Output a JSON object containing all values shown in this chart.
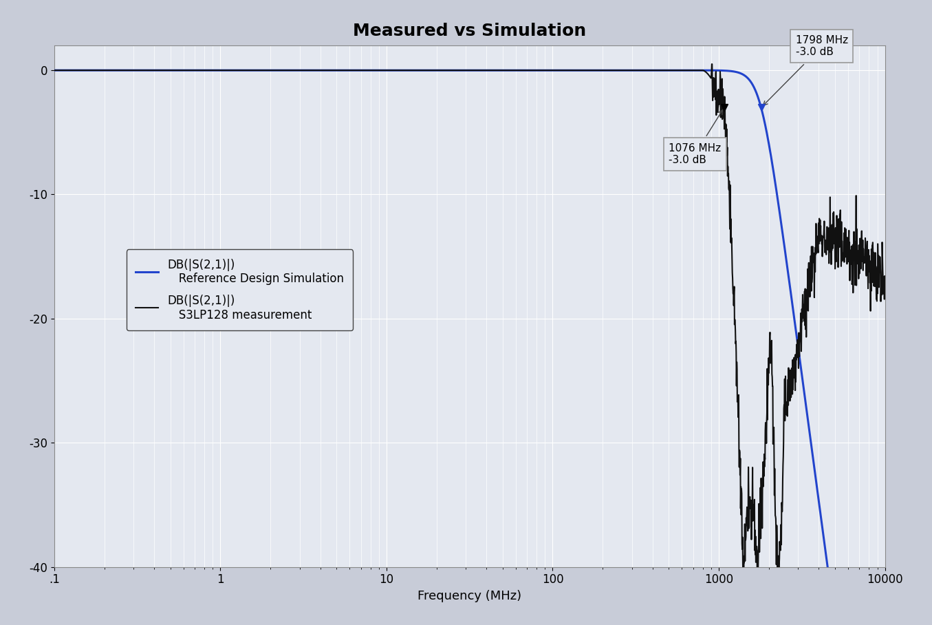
{
  "title": "Measured vs Simulation",
  "xlabel": "Frequency (MHz)",
  "xlim_log": [
    0.1,
    10000
  ],
  "ylim": [
    -40,
    2
  ],
  "yticks": [
    0,
    -10,
    -20,
    -30,
    -40
  ],
  "xticks": [
    0.1,
    1,
    10,
    100,
    1000,
    10000
  ],
  "xticklabels": [
    ".1",
    "1",
    "10",
    "100",
    "1000",
    "10000"
  ],
  "bg_color": "#c8ccd8",
  "plot_bg_color": "#e4e8f0",
  "grid_color": "#ffffff",
  "blue_color": "#2244cc",
  "black_color": "#111111",
  "annotation1_freq": 1076,
  "annotation1_db": -3.0,
  "annotation1_label": "1076 MHz\n-3.0 dB",
  "annotation2_freq": 1798,
  "annotation2_db": -3.0,
  "annotation2_label": "1798 MHz\n-3.0 dB",
  "sim_f3db": 1798,
  "meas_f3db": 1076,
  "title_fontsize": 18,
  "axis_fontsize": 13,
  "tick_fontsize": 12,
  "legend_label_blue": "DB(|S(2,1)|)\n   Reference Design Simulation",
  "legend_label_black": "DB(|S(2,1)|)\n   S3LP128 measurement"
}
